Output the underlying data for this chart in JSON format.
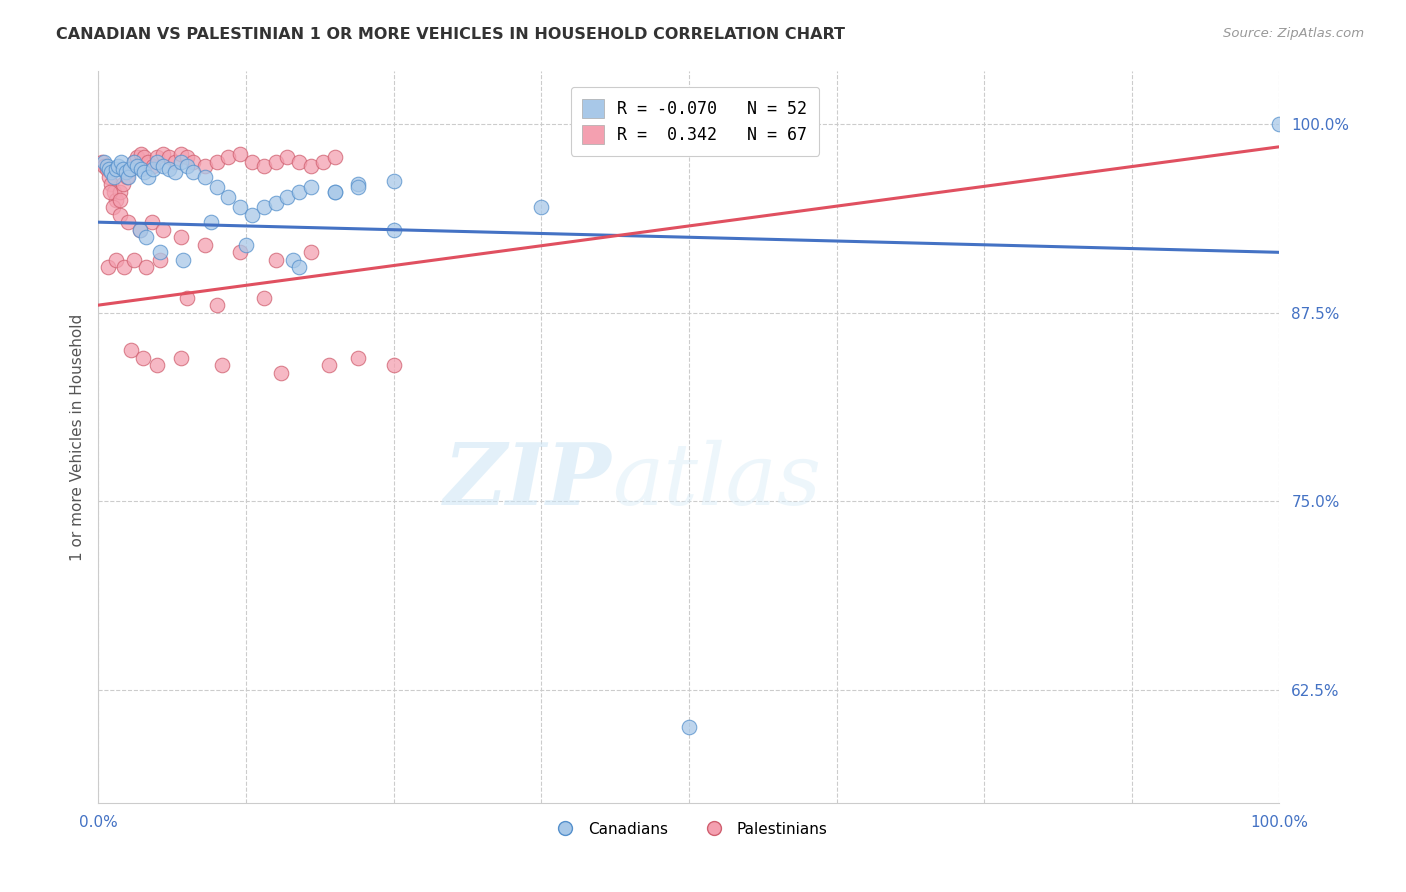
{
  "title": "CANADIAN VS PALESTINIAN 1 OR MORE VEHICLES IN HOUSEHOLD CORRELATION CHART",
  "source": "Source: ZipAtlas.com",
  "ylabel": "1 or more Vehicles in Household",
  "watermark_zip": "ZIP",
  "watermark_atlas": "atlas",
  "xlim": [
    0.0,
    100.0
  ],
  "ylim": [
    55.0,
    103.5
  ],
  "yticks": [
    62.5,
    75.0,
    87.5,
    100.0
  ],
  "xticks": [
    0.0,
    12.5,
    25.0,
    37.5,
    50.0,
    62.5,
    75.0,
    87.5,
    100.0
  ],
  "canadian_color": "#a8c8e8",
  "canadian_edge": "#5590cc",
  "canadian_edge_width": 0.8,
  "palestinian_color": "#f4a0b0",
  "palestinian_edge": "#d06070",
  "palestinian_edge_width": 0.8,
  "trend_blue_color": "#4472c4",
  "trend_red_color": "#e05060",
  "marker_size": 110,
  "marker_alpha": 0.75,
  "legend_r_blue": "R = -0.070",
  "legend_n_blue": "N = 52",
  "legend_r_red": "R =  0.342",
  "legend_n_red": "N = 67",
  "legend_label_canadian": "Canadians",
  "legend_label_palestinian": "Palestinians",
  "trend_blue_start_y": 93.5,
  "trend_blue_end_y": 91.5,
  "trend_red_start_y": 88.0,
  "trend_red_end_y": 98.5,
  "canadians_x": [
    0.5,
    0.7,
    0.9,
    1.1,
    1.3,
    1.5,
    1.7,
    1.9,
    2.1,
    2.3,
    2.5,
    2.7,
    3.0,
    3.3,
    3.6,
    3.9,
    4.2,
    4.6,
    5.0,
    5.5,
    6.0,
    6.5,
    7.0,
    7.5,
    8.0,
    9.0,
    10.0,
    11.0,
    12.0,
    13.0,
    14.0,
    15.0,
    16.0,
    17.0,
    18.0,
    20.0,
    22.0,
    25.0,
    3.5,
    4.0,
    5.2,
    7.2,
    9.5,
    12.5,
    16.5,
    20.0,
    22.0,
    17.0,
    25.0,
    37.5,
    50.0,
    100.0
  ],
  "canadians_y": [
    97.5,
    97.2,
    97.0,
    96.8,
    96.5,
    97.0,
    97.2,
    97.5,
    97.0,
    96.8,
    96.5,
    97.0,
    97.5,
    97.2,
    97.0,
    96.8,
    96.5,
    97.0,
    97.5,
    97.2,
    97.0,
    96.8,
    97.5,
    97.2,
    96.8,
    96.5,
    95.8,
    95.2,
    94.5,
    94.0,
    94.5,
    94.8,
    95.2,
    95.5,
    95.8,
    95.5,
    96.0,
    96.2,
    93.0,
    92.5,
    91.5,
    91.0,
    93.5,
    92.0,
    91.0,
    95.5,
    95.8,
    90.5,
    93.0,
    94.5,
    60.0,
    100.0
  ],
  "palestinians_x": [
    0.3,
    0.5,
    0.7,
    0.9,
    1.1,
    1.3,
    1.5,
    1.8,
    2.1,
    2.4,
    2.7,
    3.0,
    3.3,
    3.6,
    3.9,
    4.2,
    4.6,
    5.0,
    5.5,
    6.0,
    6.5,
    7.0,
    7.5,
    8.0,
    9.0,
    10.0,
    11.0,
    12.0,
    13.0,
    14.0,
    15.0,
    16.0,
    17.0,
    18.0,
    19.0,
    20.0,
    1.2,
    1.8,
    2.5,
    3.5,
    4.5,
    5.5,
    7.0,
    9.0,
    12.0,
    15.0,
    18.0,
    0.8,
    1.5,
    2.2,
    3.0,
    4.0,
    5.2,
    7.5,
    10.0,
    14.0,
    1.0,
    1.8,
    2.8,
    3.8,
    5.0,
    7.0,
    10.5,
    15.5,
    19.5,
    22.0,
    25.0
  ],
  "palestinians_y": [
    97.5,
    97.2,
    97.0,
    96.5,
    96.0,
    95.5,
    95.0,
    95.5,
    96.0,
    96.5,
    97.0,
    97.5,
    97.8,
    98.0,
    97.8,
    97.5,
    97.2,
    97.8,
    98.0,
    97.8,
    97.5,
    98.0,
    97.8,
    97.5,
    97.2,
    97.5,
    97.8,
    98.0,
    97.5,
    97.2,
    97.5,
    97.8,
    97.5,
    97.2,
    97.5,
    97.8,
    94.5,
    94.0,
    93.5,
    93.0,
    93.5,
    93.0,
    92.5,
    92.0,
    91.5,
    91.0,
    91.5,
    90.5,
    91.0,
    90.5,
    91.0,
    90.5,
    91.0,
    88.5,
    88.0,
    88.5,
    95.5,
    95.0,
    85.0,
    84.5,
    84.0,
    84.5,
    84.0,
    83.5,
    84.0,
    84.5,
    84.0
  ]
}
